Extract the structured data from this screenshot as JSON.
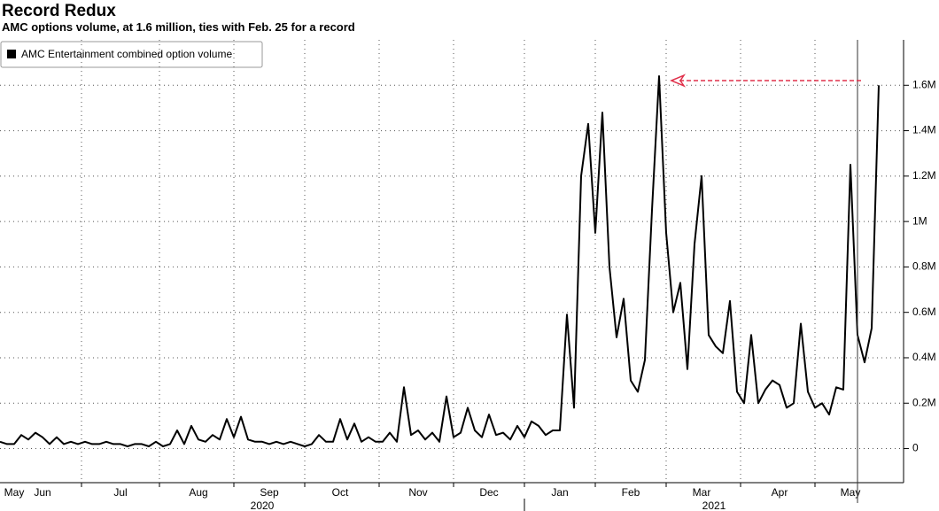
{
  "chart_data": {
    "type": "line",
    "title": "Record Redux",
    "subtitle": "AMC options volume, at 1.6 million, ties with Feb. 25 for a record",
    "categories": [
      null,
      null,
      "May",
      null,
      null,
      null,
      "Jun",
      null,
      null,
      null,
      null,
      null,
      null,
      null,
      null,
      null,
      null,
      "Jul",
      null,
      null,
      null,
      null,
      null,
      null,
      null,
      null,
      null,
      null,
      "Aug",
      null,
      null,
      null,
      null,
      null,
      null,
      null,
      null,
      null,
      "Sep",
      null,
      null,
      null,
      null,
      null,
      null,
      null,
      null,
      null,
      "Oct",
      null,
      null,
      null,
      null,
      null,
      null,
      null,
      null,
      null,
      null,
      "Nov",
      null,
      null,
      null,
      null,
      null,
      null,
      null,
      null,
      null,
      "Dec",
      null,
      null,
      null,
      null,
      null,
      null,
      null,
      null,
      null,
      "Jan",
      null,
      null,
      null,
      null,
      null,
      null,
      null,
      null,
      null,
      "Feb",
      null,
      null,
      null,
      null,
      null,
      null,
      null,
      null,
      null,
      "Mar",
      null,
      null,
      null,
      null,
      null,
      null,
      null,
      null,
      null,
      null,
      "Apr",
      null,
      null,
      null,
      null,
      null,
      null,
      null,
      null,
      null,
      "May",
      null,
      null,
      null,
      null
    ],
    "x_groups": [
      "2020",
      "2021"
    ],
    "series": [
      {
        "name": "AMC Entertainment combined option volume",
        "color": "#000000",
        "values": [
          0.03,
          0.02,
          0.02,
          0.06,
          0.04,
          0.07,
          0.05,
          0.02,
          0.05,
          0.02,
          0.03,
          0.02,
          0.03,
          0.02,
          0.02,
          0.03,
          0.02,
          0.02,
          0.01,
          0.02,
          0.02,
          0.01,
          0.03,
          0.01,
          0.02,
          0.08,
          0.02,
          0.1,
          0.04,
          0.03,
          0.06,
          0.04,
          0.13,
          0.05,
          0.14,
          0.04,
          0.03,
          0.03,
          0.02,
          0.03,
          0.02,
          0.03,
          0.02,
          0.01,
          0.02,
          0.06,
          0.03,
          0.03,
          0.13,
          0.04,
          0.11,
          0.03,
          0.05,
          0.03,
          0.03,
          0.07,
          0.03,
          0.27,
          0.06,
          0.08,
          0.04,
          0.07,
          0.03,
          0.23,
          0.05,
          0.07,
          0.18,
          0.08,
          0.05,
          0.15,
          0.06,
          0.07,
          0.04,
          0.1,
          0.05,
          0.12,
          0.1,
          0.06,
          0.08,
          0.08,
          0.59,
          0.18,
          1.2,
          1.43,
          0.95,
          1.48,
          0.8,
          0.49,
          0.66,
          0.3,
          0.25,
          0.39,
          1.05,
          1.64,
          0.95,
          0.6,
          0.73,
          0.35,
          0.9,
          1.2,
          0.5,
          0.45,
          0.42,
          0.65,
          0.25,
          0.2,
          0.5,
          0.2,
          0.26,
          0.3,
          0.28,
          0.18,
          0.2,
          0.55,
          0.25,
          0.18,
          0.2,
          0.15,
          0.27,
          0.26,
          1.25,
          0.5,
          0.38,
          0.53,
          1.6
        ]
      }
    ],
    "ylim": [
      -0.15,
      1.8
    ],
    "yticks": [
      0,
      {
        "value": 0.2,
        "label": "0.2M"
      },
      {
        "value": 0.4,
        "label": "0.4M"
      },
      {
        "value": 0.6,
        "label": "0.6M"
      },
      {
        "value": 0.8,
        "label": "0.8M"
      },
      {
        "value": 1,
        "label": "1M"
      },
      {
        "value": 1.2,
        "label": "1.2M"
      },
      {
        "value": 1.4,
        "label": "1.4M"
      },
      {
        "value": 1.6,
        "label": "1.6M"
      }
    ],
    "grid": true
  }
}
